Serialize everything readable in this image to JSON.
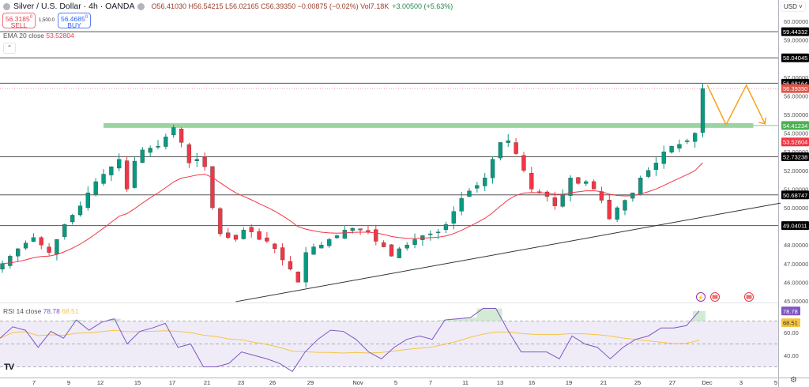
{
  "header": {
    "title": "Silver / U.S. Dollar · 4h · OANDA",
    "ohlc": "O56.41030 H56.54215 L56.02165 C56.39350 −0.00875 (−0.02%) Vol7.18K",
    "change": "+3.00500 (+5.63%)"
  },
  "trade": {
    "sell_price": "56.3185",
    "sell_sup": "0",
    "sell_label": "SELL",
    "qty": "1,500.0",
    "buy_price": "56.4685",
    "buy_sup": "0",
    "buy_label": "BUY"
  },
  "ema_legend": {
    "label": "EMA 20 close",
    "value": "53.52804"
  },
  "rsi_legend": {
    "label": "RSI 14 close",
    "value": "78.78",
    "ma_value": "68.51"
  },
  "currency": "USD",
  "icons": {
    "collapse": "chevron-up-icon",
    "logo": "tradingview-logo",
    "settings": "gear-icon",
    "events": [
      "lightning-event-icon",
      "us-flag-event-icon",
      "us-flag-event-icon"
    ]
  },
  "colors": {
    "up": "#089981",
    "down": "#f23645",
    "ema": "#f23645",
    "rsi": "#7e57c2",
    "rsi_ma": "#f5c542",
    "support": "#7fc98b",
    "projection": "#f7a21b",
    "rsi_band": "#efecf8"
  },
  "chart_data": {
    "type": "candlestick",
    "ylim": [
      45,
      60
    ],
    "y_ticks": [
      "60.00000",
      "59.00000",
      "57.00000",
      "56.00000",
      "55.00000",
      "54.00000",
      "53.00000",
      "52.00000",
      "51.00000",
      "50.00000",
      "48.00000",
      "47.00000",
      "46.00000",
      "45.00000"
    ],
    "x_ticks": [
      "7",
      "9",
      "12",
      "15",
      "17",
      "21",
      "23",
      "26",
      "29",
      "Nov",
      "5",
      "7",
      "11",
      "13",
      "16",
      "19",
      "21",
      "25",
      "27",
      "Dec",
      "3",
      "5"
    ],
    "closes": [
      47.0,
      47.4,
      47.8,
      48.1,
      48.4,
      48.0,
      47.6,
      48.3,
      49.1,
      49.6,
      50.1,
      50.8,
      51.4,
      51.8,
      52.2,
      52.6,
      51.0,
      52.5,
      53.1,
      53.2,
      53.3,
      53.8,
      54.3,
      53.5,
      52.4,
      52.6,
      52.2,
      50.0,
      48.6,
      48.4,
      48.3,
      48.8,
      48.7,
      48.3,
      48.2,
      47.8,
      47.2,
      46.7,
      46.0,
      47.6,
      47.9,
      48.0,
      48.3,
      48.5,
      48.8,
      48.9,
      48.8,
      48.7,
      48.2,
      47.9,
      47.4,
      47.8,
      48.0,
      48.3,
      48.5,
      48.6,
      48.7,
      49.1,
      49.8,
      50.5,
      50.9,
      51.2,
      51.6,
      52.6,
      53.5,
      53.6,
      52.9,
      52.0,
      51.0,
      50.8,
      50.6,
      50.1,
      50.7,
      51.6,
      51.3,
      51.4,
      51.0,
      50.4,
      49.4,
      50.0,
      50.4,
      50.8,
      51.6,
      52.0,
      52.4,
      53.0,
      53.3,
      53.4,
      53.6,
      54.0,
      56.3935
    ],
    "ema_period": 20,
    "levels": [
      {
        "value": 59.44332,
        "label": "59.44332"
      },
      {
        "value": 58.04045,
        "label": "58.04045"
      },
      {
        "value": 56.68164,
        "label": "56.68164"
      },
      {
        "value": 52.73238,
        "label": "52.73238"
      },
      {
        "value": 50.68747,
        "label": "50.68747"
      },
      {
        "value": 49.04011,
        "label": "49.04011"
      }
    ],
    "last_price": {
      "value": 56.3935,
      "label": "56.39350"
    },
    "support": {
      "value": 54.41234,
      "label": "54.41234",
      "from_index": 13,
      "to_index": 96.5
    },
    "ema_tag": {
      "value": 53.52804,
      "label": "53.52804"
    },
    "trendline": [
      {
        "index": 30,
        "price": 44.96
      },
      {
        "index": 100,
        "price": 50.25
      }
    ],
    "projection": [
      {
        "index": 90.6,
        "price": 56.57
      },
      {
        "index": 93,
        "price": 54.45
      },
      {
        "index": 95.6,
        "price": 56.57
      },
      {
        "index": 98,
        "price": 54.5
      }
    ],
    "rsi": {
      "ylim": [
        20,
        90
      ],
      "bands": [
        70,
        50,
        30
      ],
      "y_ticks": [
        "60.00",
        "40.00"
      ],
      "ma_period": 14,
      "values": [
        55,
        65,
        62,
        47,
        61,
        55,
        71,
        62,
        69,
        72,
        50,
        61,
        64,
        68,
        47,
        50,
        30,
        30,
        33,
        43,
        40,
        37,
        33,
        26,
        43,
        54,
        62,
        61,
        54,
        43,
        37,
        47,
        54,
        57,
        54,
        71,
        72,
        73,
        81,
        81,
        61,
        43,
        43,
        43,
        37,
        57,
        50,
        47,
        37,
        47,
        54,
        57,
        64,
        64,
        66,
        78.78
      ],
      "last_tag": "78.78",
      "ma_tag": "68.51"
    }
  }
}
